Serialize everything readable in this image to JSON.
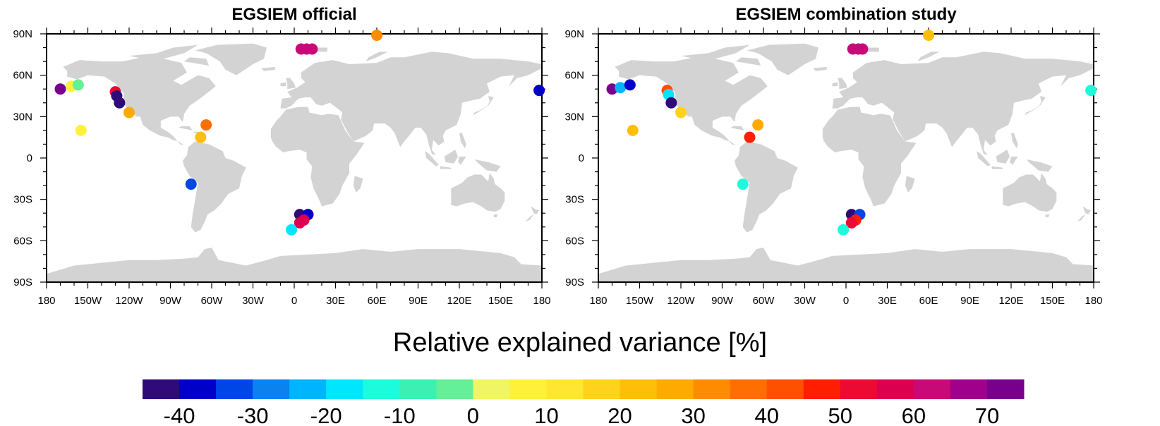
{
  "colorbar": {
    "title": "Relative explained variance [%]",
    "labels": [
      "-40",
      "-30",
      "-20",
      "-10",
      "0",
      "10",
      "20",
      "30",
      "40",
      "50",
      "60",
      "70"
    ],
    "colors": [
      "#2e0a7a",
      "#0000c8",
      "#0046e6",
      "#0a82f0",
      "#00b4ff",
      "#00e6ff",
      "#1efadc",
      "#3cf0b4",
      "#64f096",
      "#f0f564",
      "#fff03c",
      "#ffe632",
      "#ffd21e",
      "#ffbe0a",
      "#ffaa00",
      "#ff8c00",
      "#ff6e00",
      "#ff5000",
      "#ff1e00",
      "#eb0a32",
      "#dc0050",
      "#c80a78",
      "#a0008c",
      "#78008c"
    ]
  },
  "chart_data": [
    {
      "type": "scatter",
      "title": "EGSIEM official",
      "map": "world",
      "x_range": [
        -180,
        180
      ],
      "y_range": [
        -90,
        90
      ],
      "xticklabels": [
        "180",
        "150W",
        "120W",
        "90W",
        "60W",
        "30W",
        "0",
        "30E",
        "60E",
        "90E",
        "120E",
        "150E",
        "180"
      ],
      "yticklabels": [
        "90N",
        "60N",
        "30N",
        "0",
        "30S",
        "60S",
        "90S"
      ],
      "color_value_label": "Relative explained variance [%]",
      "points": [
        {
          "lon": -170,
          "lat": 50,
          "value": 70
        },
        {
          "lon": -162,
          "lat": 52,
          "value": 8
        },
        {
          "lon": -157,
          "lat": 53,
          "value": -5
        },
        {
          "lon": -155,
          "lat": 20,
          "value": 5
        },
        {
          "lon": -130,
          "lat": 48,
          "value": 50
        },
        {
          "lon": -129,
          "lat": 45,
          "value": -45
        },
        {
          "lon": -127,
          "lat": 40,
          "value": -45
        },
        {
          "lon": -120,
          "lat": 33,
          "value": 27
        },
        {
          "lon": -64,
          "lat": 24,
          "value": 35
        },
        {
          "lon": -68,
          "lat": 15,
          "value": 23
        },
        {
          "lon": -75,
          "lat": -19,
          "value": -33
        },
        {
          "lon": 60,
          "lat": 89,
          "value": 30
        },
        {
          "lon": 5,
          "lat": 79,
          "value": 60
        },
        {
          "lon": 9,
          "lat": 79,
          "value": 60
        },
        {
          "lon": 13,
          "lat": 79,
          "value": 60
        },
        {
          "lon": 4,
          "lat": -41,
          "value": -45
        },
        {
          "lon": 10,
          "lat": -41,
          "value": -40
        },
        {
          "lon": 7,
          "lat": -45,
          "value": 58
        },
        {
          "lon": 4,
          "lat": -47,
          "value": 58
        },
        {
          "lon": -2,
          "lat": -52,
          "value": -17
        },
        {
          "lon": 178,
          "lat": 49,
          "value": -40
        }
      ]
    },
    {
      "type": "scatter",
      "title": "EGSIEM combination study",
      "map": "world",
      "x_range": [
        -180,
        180
      ],
      "y_range": [
        -90,
        90
      ],
      "xticklabels": [
        "180",
        "150W",
        "120W",
        "90W",
        "60W",
        "30W",
        "0",
        "30E",
        "60E",
        "90E",
        "120E",
        "150E",
        "180"
      ],
      "yticklabels": [
        "90N",
        "60N",
        "30N",
        "0",
        "30S",
        "60S",
        "90S"
      ],
      "color_value_label": "Relative explained variance [%]",
      "points": [
        {
          "lon": -170,
          "lat": 50,
          "value": 70
        },
        {
          "lon": -164,
          "lat": 51,
          "value": -23
        },
        {
          "lon": -157,
          "lat": 53,
          "value": -40
        },
        {
          "lon": -155,
          "lat": 20,
          "value": 23
        },
        {
          "lon": -130,
          "lat": 49,
          "value": 40
        },
        {
          "lon": -129,
          "lat": 46,
          "value": -17
        },
        {
          "lon": -127,
          "lat": 40,
          "value": -45
        },
        {
          "lon": -120,
          "lat": 33,
          "value": 17
        },
        {
          "lon": -64,
          "lat": 24,
          "value": 27
        },
        {
          "lon": -70,
          "lat": 15,
          "value": 45
        },
        {
          "lon": -75,
          "lat": -19,
          "value": -12
        },
        {
          "lon": 60,
          "lat": 89,
          "value": 20
        },
        {
          "lon": 5,
          "lat": 79,
          "value": 60
        },
        {
          "lon": 9,
          "lat": 79,
          "value": 60
        },
        {
          "lon": 12,
          "lat": 79,
          "value": 60
        },
        {
          "lon": 4,
          "lat": -41,
          "value": -45
        },
        {
          "lon": 10,
          "lat": -41,
          "value": -33
        },
        {
          "lon": 7,
          "lat": -45,
          "value": 48
        },
        {
          "lon": 4,
          "lat": -47,
          "value": 52
        },
        {
          "lon": -2,
          "lat": -52,
          "value": -12
        },
        {
          "lon": 178,
          "lat": 49,
          "value": -12
        }
      ]
    }
  ]
}
